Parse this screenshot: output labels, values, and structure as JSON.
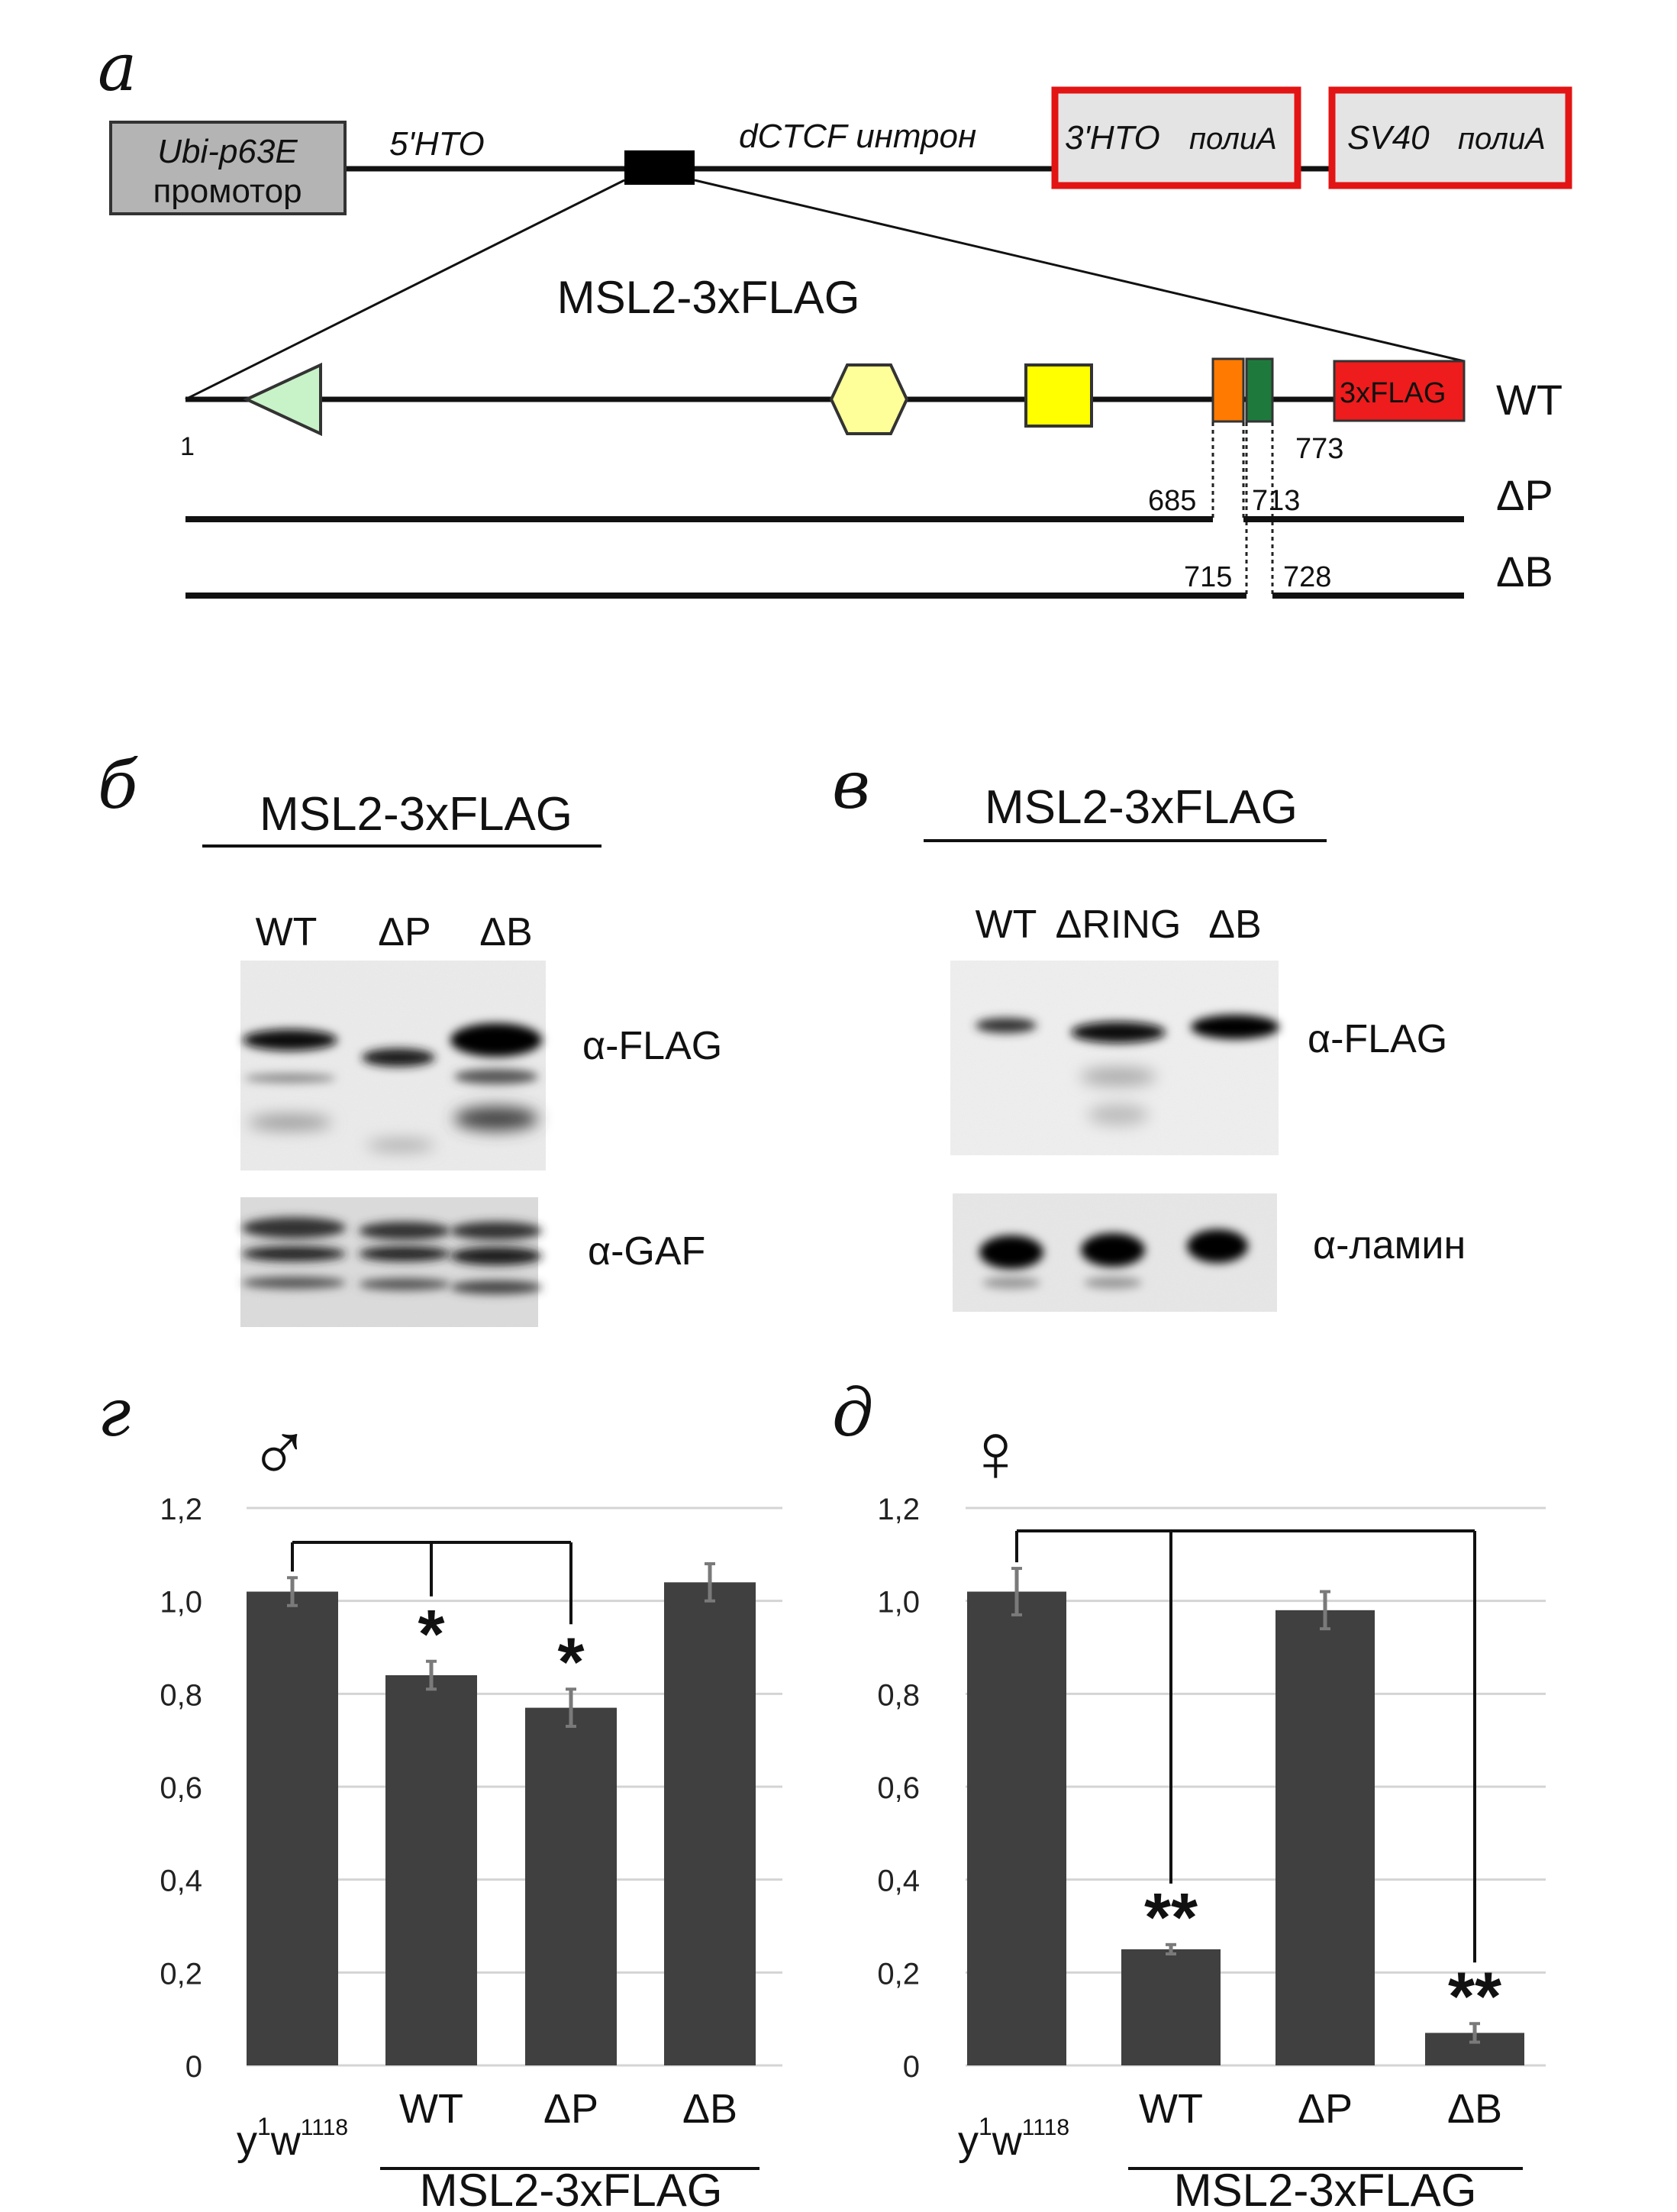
{
  "panels": {
    "a": {
      "letter": "а",
      "construct": {
        "promoter_line1": "Ubi-p63E",
        "promoter_line2": "промотор",
        "utr5": "5'НТО",
        "intron": "dCTCF интрон",
        "utr3_part1": "3'НТО",
        "utr3_part2": "полиА",
        "sv40_part1": "SV40",
        "sv40_part2": "полиА",
        "colors": {
          "promoter_fill": "#b4b4b4",
          "polya_border": "#e31414",
          "polya_fill": "#e4e4e4"
        }
      },
      "protein_title": "MSL2-3xFLAG",
      "flag_label": "3xFLAG",
      "labels": {
        "wt": "WT",
        "dp": "ΔP",
        "db": "ΔB"
      },
      "positions": {
        "start": "1",
        "end": "773",
        "p_start": "685",
        "p_end": "713",
        "b_start": "715",
        "b_end": "728"
      },
      "domains": [
        {
          "icon": "triangle-icon",
          "color": "#c8f2c8"
        },
        {
          "icon": "hexagon-icon",
          "color": "#ffff99"
        },
        {
          "icon": "square-icon",
          "color": "#ffff00"
        },
        {
          "icon": "orange-box-icon",
          "color": "#ff7a00"
        },
        {
          "icon": "green-box-icon",
          "color": "#1e7a3c"
        },
        {
          "icon": "flag-box-icon",
          "color": "#ee1c1c"
        }
      ]
    },
    "b": {
      "letter": "б",
      "title": "MSL2-3xFLAG",
      "lanes": [
        "WT",
        "ΔP",
        "ΔB"
      ],
      "blot1": "α-FLAG",
      "blot2": "α-GAF"
    },
    "c": {
      "letter": "в",
      "title": "MSL2-3xFLAG",
      "lanes": [
        "WT",
        "ΔRING",
        "ΔB"
      ],
      "blot1": "α-FLAG",
      "blot2": "α-ламин"
    },
    "d": {
      "letter": "г",
      "sex_symbol": "♂"
    },
    "e": {
      "letter": "д",
      "sex_symbol": "♀"
    }
  },
  "chart_data": [
    {
      "type": "bar",
      "panel": "г",
      "categories": [
        "y1w1118",
        "WT",
        "ΔP",
        "ΔB"
      ],
      "values": [
        1.02,
        0.84,
        0.77,
        1.04
      ],
      "errors": [
        0.03,
        0.03,
        0.04,
        0.04
      ],
      "significance": [
        "",
        "*",
        "*",
        ""
      ],
      "ylim": [
        0,
        1.2
      ],
      "yticks": [
        "0",
        "0,2",
        "0,4",
        "0,6",
        "0,8",
        "1,0",
        "1,2"
      ],
      "group_label": "MSL2-3xFLAG",
      "control_label": {
        "base": "y",
        "sup1": "1",
        "mid": "w",
        "sup2": "1118"
      },
      "grid": true,
      "bar_color": "#404040"
    },
    {
      "type": "bar",
      "panel": "д",
      "categories": [
        "y1w1118",
        "WT",
        "ΔP",
        "ΔB"
      ],
      "values": [
        1.02,
        0.25,
        0.98,
        0.07
      ],
      "errors": [
        0.05,
        0.01,
        0.04,
        0.02
      ],
      "significance": [
        "",
        "**",
        "",
        "**"
      ],
      "ylim": [
        0,
        1.2
      ],
      "yticks": [
        "0",
        "0,2",
        "0,4",
        "0,6",
        "0,8",
        "1,0",
        "1,2"
      ],
      "group_label": "MSL2-3xFLAG",
      "control_label": {
        "base": "y",
        "sup1": "1",
        "mid": "w",
        "sup2": "1118"
      },
      "grid": true,
      "bar_color": "#404040"
    }
  ]
}
